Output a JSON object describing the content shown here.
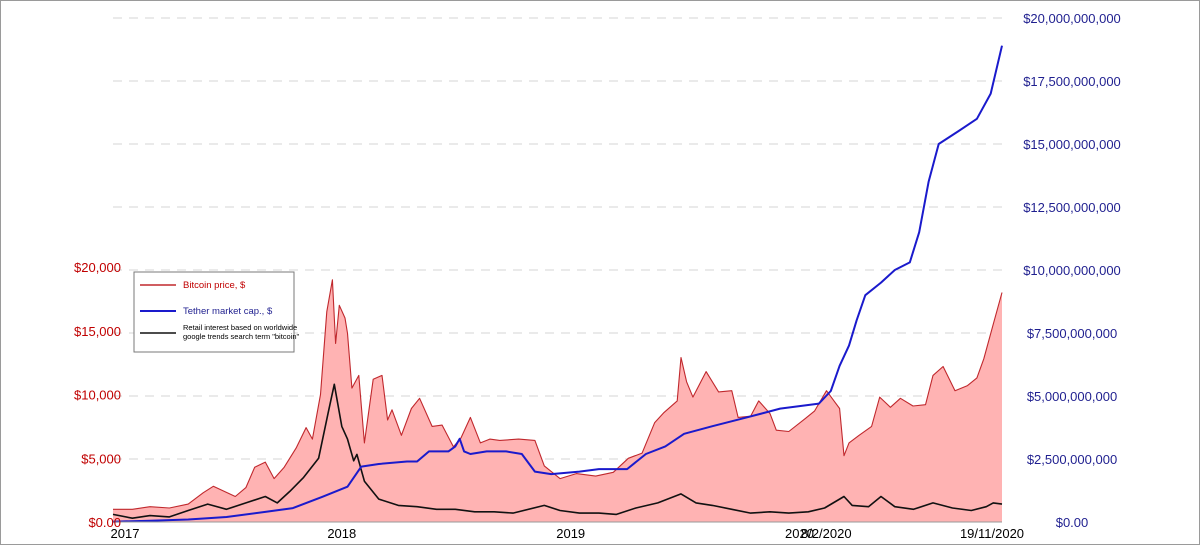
{
  "chart_data": {
    "type": "area",
    "colors": {
      "bitcoin_line": "#c0282d",
      "bitcoin_fill": "#ffb3b3",
      "tether": "#1a1acc",
      "retail": "#111111",
      "left_axis_text": "#c00000",
      "right_axis_text": "#1f1f8f"
    },
    "left_axis": {
      "min": 0,
      "max": 20000,
      "ticks": [
        {
          "value": 0,
          "label": "$0.00"
        },
        {
          "value": 5000,
          "label": "$5,000"
        },
        {
          "value": 10000,
          "label": "$10,000"
        },
        {
          "value": 15000,
          "label": "$15,000"
        },
        {
          "value": 20000,
          "label": "$20,000"
        }
      ]
    },
    "right_axis": {
      "min": 0,
      "max": 20000000000,
      "ticks": [
        {
          "value": 0,
          "label": "$0.00"
        },
        {
          "value": 2500000000,
          "label": "$2,500,000,000"
        },
        {
          "value": 5000000000,
          "label": "$5,000,000,000"
        },
        {
          "value": 7500000000,
          "label": "$7,500,000,000"
        },
        {
          "value": 10000000000,
          "label": "$10,000,000,000"
        },
        {
          "value": 12500000000,
          "label": "$12,500,000,000"
        },
        {
          "value": 15000000000,
          "label": "$15,000,000,000"
        },
        {
          "value": 17500000000,
          "label": "$17,500,000,000"
        },
        {
          "value": 20000000000,
          "label": "$20,000,000,000"
        }
      ]
    },
    "x_axis": {
      "start": "2017-01-01",
      "end": "2020-11-19",
      "ticks": [
        {
          "date": "2017-01-01",
          "label": "2017"
        },
        {
          "date": "2018-01-01",
          "label": "2018"
        },
        {
          "date": "2019-01-01",
          "label": "2019"
        },
        {
          "date": "2020-01-01",
          "label": "2020"
        },
        {
          "date": "2020-02-08",
          "label": "8/2/2020"
        },
        {
          "date": "2020-11-19",
          "label": "19/11/2020"
        }
      ]
    },
    "legend": {
      "placement": "left",
      "entries": [
        {
          "key": "bitcoin",
          "label": "Bitcoin price, $"
        },
        {
          "key": "tether",
          "label": "Tether market cap., $"
        },
        {
          "key": "retail",
          "label": "Retail interest based on worldwide google trends search term \"bitcoin\""
        }
      ]
    },
    "series": [
      {
        "key": "bitcoin",
        "name": "Bitcoin price, $",
        "axis": "left",
        "style": "area",
        "points": [
          [
            "2017-01-01",
            1000
          ],
          [
            "2017-02-01",
            1000
          ],
          [
            "2017-03-01",
            1200
          ],
          [
            "2017-04-01",
            1100
          ],
          [
            "2017-05-01",
            1400
          ],
          [
            "2017-05-25",
            2300
          ],
          [
            "2017-06-10",
            2800
          ],
          [
            "2017-07-15",
            2000
          ],
          [
            "2017-08-01",
            2700
          ],
          [
            "2017-08-15",
            4300
          ],
          [
            "2017-09-01",
            4700
          ],
          [
            "2017-09-15",
            3400
          ],
          [
            "2017-10-01",
            4300
          ],
          [
            "2017-10-20",
            5800
          ],
          [
            "2017-11-05",
            7400
          ],
          [
            "2017-11-15",
            6500
          ],
          [
            "2017-11-28",
            10000
          ],
          [
            "2017-12-08",
            16500
          ],
          [
            "2017-12-17",
            19000
          ],
          [
            "2017-12-22",
            14000
          ],
          [
            "2017-12-28",
            17000
          ],
          [
            "2018-01-06",
            16000
          ],
          [
            "2018-01-10",
            14800
          ],
          [
            "2018-01-17",
            10500
          ],
          [
            "2018-01-28",
            11500
          ],
          [
            "2018-02-06",
            6200
          ],
          [
            "2018-02-20",
            11200
          ],
          [
            "2018-03-06",
            11500
          ],
          [
            "2018-03-15",
            8000
          ],
          [
            "2018-03-22",
            8800
          ],
          [
            "2018-04-06",
            6800
          ],
          [
            "2018-04-22",
            8900
          ],
          [
            "2018-05-05",
            9700
          ],
          [
            "2018-05-25",
            7500
          ],
          [
            "2018-06-10",
            7600
          ],
          [
            "2018-06-28",
            5900
          ],
          [
            "2018-07-10",
            6600
          ],
          [
            "2018-07-25",
            8200
          ],
          [
            "2018-08-10",
            6200
          ],
          [
            "2018-08-25",
            6500
          ],
          [
            "2018-09-10",
            6400
          ],
          [
            "2018-10-10",
            6500
          ],
          [
            "2018-11-05",
            6400
          ],
          [
            "2018-11-20",
            4400
          ],
          [
            "2018-12-15",
            3400
          ],
          [
            "2019-01-10",
            3800
          ],
          [
            "2019-02-10",
            3600
          ],
          [
            "2019-03-10",
            3900
          ],
          [
            "2019-04-03",
            5000
          ],
          [
            "2019-04-25",
            5400
          ],
          [
            "2019-05-15",
            7800
          ],
          [
            "2019-05-30",
            8600
          ],
          [
            "2019-06-20",
            9500
          ],
          [
            "2019-06-26",
            12900
          ],
          [
            "2019-07-05",
            11000
          ],
          [
            "2019-07-15",
            9800
          ],
          [
            "2019-08-05",
            11800
          ],
          [
            "2019-08-25",
            10200
          ],
          [
            "2019-09-15",
            10300
          ],
          [
            "2019-09-25",
            8200
          ],
          [
            "2019-10-15",
            8300
          ],
          [
            "2019-10-28",
            9500
          ],
          [
            "2019-11-15",
            8500
          ],
          [
            "2019-11-25",
            7200
          ],
          [
            "2019-12-15",
            7100
          ],
          [
            "2020-01-10",
            8100
          ],
          [
            "2020-01-25",
            8700
          ],
          [
            "2020-02-13",
            10300
          ],
          [
            "2020-02-25",
            9500
          ],
          [
            "2020-03-05",
            8900
          ],
          [
            "2020-03-12",
            5200
          ],
          [
            "2020-03-20",
            6200
          ],
          [
            "2020-04-05",
            6800
          ],
          [
            "2020-04-25",
            7500
          ],
          [
            "2020-05-08",
            9800
          ],
          [
            "2020-05-25",
            9000
          ],
          [
            "2020-06-10",
            9700
          ],
          [
            "2020-06-30",
            9100
          ],
          [
            "2020-07-20",
            9200
          ],
          [
            "2020-08-01",
            11500
          ],
          [
            "2020-08-17",
            12200
          ],
          [
            "2020-09-05",
            10300
          ],
          [
            "2020-09-25",
            10700
          ],
          [
            "2020-10-10",
            11300
          ],
          [
            "2020-10-21",
            12800
          ],
          [
            "2020-11-05",
            15500
          ],
          [
            "2020-11-19",
            18000
          ]
        ]
      },
      {
        "key": "tether",
        "name": "Tether market cap., $",
        "axis": "right",
        "style": "line",
        "points": [
          [
            "2017-01-01",
            10000000
          ],
          [
            "2017-03-01",
            50000000
          ],
          [
            "2017-05-01",
            100000000
          ],
          [
            "2017-07-01",
            200000000
          ],
          [
            "2017-09-01",
            400000000
          ],
          [
            "2017-10-15",
            550000000
          ],
          [
            "2017-12-01",
            1000000000
          ],
          [
            "2018-01-10",
            1400000000
          ],
          [
            "2018-02-01",
            2200000000
          ],
          [
            "2018-03-01",
            2300000000
          ],
          [
            "2018-04-15",
            2400000000
          ],
          [
            "2018-05-01",
            2400000000
          ],
          [
            "2018-05-20",
            2800000000
          ],
          [
            "2018-06-20",
            2800000000
          ],
          [
            "2018-07-01",
            3000000000
          ],
          [
            "2018-07-08",
            3300000000
          ],
          [
            "2018-07-15",
            2800000000
          ],
          [
            "2018-07-25",
            2700000000
          ],
          [
            "2018-08-20",
            2800000000
          ],
          [
            "2018-09-20",
            2800000000
          ],
          [
            "2018-10-15",
            2700000000
          ],
          [
            "2018-11-05",
            2000000000
          ],
          [
            "2018-12-01",
            1900000000
          ],
          [
            "2019-01-15",
            2000000000
          ],
          [
            "2019-02-15",
            2100000000
          ],
          [
            "2019-04-01",
            2100000000
          ],
          [
            "2019-05-01",
            2700000000
          ],
          [
            "2019-06-01",
            3000000000
          ],
          [
            "2019-07-01",
            3500000000
          ],
          [
            "2019-08-15",
            3800000000
          ],
          [
            "2019-10-01",
            4100000000
          ],
          [
            "2019-11-01",
            4300000000
          ],
          [
            "2019-12-01",
            4500000000
          ],
          [
            "2020-01-01",
            4600000000
          ],
          [
            "2020-02-01",
            4700000000
          ],
          [
            "2020-02-20",
            5200000000
          ],
          [
            "2020-03-05",
            6200000000
          ],
          [
            "2020-03-20",
            7000000000
          ],
          [
            "2020-04-01",
            8000000000
          ],
          [
            "2020-04-15",
            9000000000
          ],
          [
            "2020-05-10",
            9500000000
          ],
          [
            "2020-06-01",
            10000000000
          ],
          [
            "2020-06-25",
            10300000000
          ],
          [
            "2020-07-10",
            11500000000
          ],
          [
            "2020-07-25",
            13500000000
          ],
          [
            "2020-08-10",
            15000000000
          ],
          [
            "2020-09-10",
            15500000000
          ],
          [
            "2020-10-10",
            16000000000
          ],
          [
            "2020-11-01",
            17000000000
          ],
          [
            "2020-11-19",
            18900000000
          ]
        ]
      },
      {
        "key": "retail",
        "name": "Retail interest based on worldwide google trends search term \"bitcoin\"",
        "axis": "left",
        "style": "line",
        "points": [
          [
            "2017-01-01",
            600
          ],
          [
            "2017-02-01",
            300
          ],
          [
            "2017-03-01",
            500
          ],
          [
            "2017-04-01",
            400
          ],
          [
            "2017-05-01",
            900
          ],
          [
            "2017-06-01",
            1400
          ],
          [
            "2017-07-01",
            1000
          ],
          [
            "2017-08-01",
            1500
          ],
          [
            "2017-09-01",
            2000
          ],
          [
            "2017-09-20",
            1500
          ],
          [
            "2017-10-10",
            2400
          ],
          [
            "2017-11-01",
            3500
          ],
          [
            "2017-11-25",
            5000
          ],
          [
            "2017-12-10",
            8500
          ],
          [
            "2017-12-20",
            10800
          ],
          [
            "2018-01-01",
            7500
          ],
          [
            "2018-01-10",
            6500
          ],
          [
            "2018-01-20",
            4800
          ],
          [
            "2018-01-25",
            5300
          ],
          [
            "2018-02-06",
            3200
          ],
          [
            "2018-03-01",
            1800
          ],
          [
            "2018-04-01",
            1300
          ],
          [
            "2018-05-01",
            1200
          ],
          [
            "2018-06-01",
            1000
          ],
          [
            "2018-07-01",
            1000
          ],
          [
            "2018-08-01",
            800
          ],
          [
            "2018-09-01",
            800
          ],
          [
            "2018-10-01",
            700
          ],
          [
            "2018-11-20",
            1300
          ],
          [
            "2018-12-15",
            900
          ],
          [
            "2019-01-15",
            700
          ],
          [
            "2019-02-15",
            700
          ],
          [
            "2019-03-15",
            600
          ],
          [
            "2019-04-15",
            1100
          ],
          [
            "2019-05-20",
            1500
          ],
          [
            "2019-06-26",
            2200
          ],
          [
            "2019-07-20",
            1500
          ],
          [
            "2019-08-15",
            1300
          ],
          [
            "2019-09-15",
            1000
          ],
          [
            "2019-10-15",
            700
          ],
          [
            "2019-11-15",
            800
          ],
          [
            "2019-12-15",
            700
          ],
          [
            "2020-01-15",
            800
          ],
          [
            "2020-02-10",
            1100
          ],
          [
            "2020-03-12",
            2000
          ],
          [
            "2020-03-25",
            1300
          ],
          [
            "2020-04-20",
            1200
          ],
          [
            "2020-05-10",
            2000
          ],
          [
            "2020-06-01",
            1200
          ],
          [
            "2020-07-01",
            1000
          ],
          [
            "2020-08-01",
            1500
          ],
          [
            "2020-09-01",
            1100
          ],
          [
            "2020-10-01",
            900
          ],
          [
            "2020-10-25",
            1200
          ],
          [
            "2020-11-05",
            1500
          ],
          [
            "2020-11-19",
            1400
          ]
        ]
      }
    ]
  }
}
